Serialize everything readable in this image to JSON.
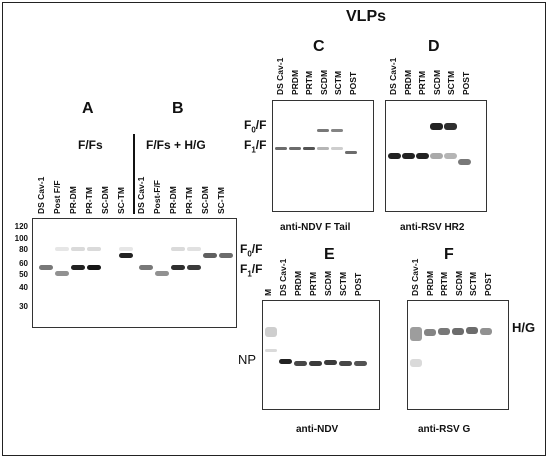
{
  "header": {
    "title": "VLPs"
  },
  "panels": {
    "A": {
      "letter": "A",
      "subtitle": "F/Fs",
      "lanes": [
        "DS Cav-1",
        "Post F/F",
        "PR-DM",
        "PR-TM",
        "SC-DM",
        "SC-TM"
      ]
    },
    "B": {
      "letter": "B",
      "subtitle": "F/Fs + H/G",
      "lanes": [
        "DS Cav-1",
        "Post-F/F",
        "PR-DM",
        "PR-TM",
        "SC-DM",
        "SC-TM"
      ]
    },
    "C": {
      "letter": "C",
      "lanes": [
        "DS Cav-1",
        "PRDM",
        "PRTM",
        "SCDM",
        "SCTM",
        "POST"
      ],
      "caption": "anti-NDV F Tail",
      "labels": [
        "F0/F",
        "F1/F"
      ]
    },
    "D": {
      "letter": "D",
      "lanes": [
        "DS Cav-1",
        "PRDM",
        "PRTM",
        "SCDM",
        "SCTM",
        "POST"
      ],
      "caption": "anti-RSV HR2"
    },
    "E": {
      "letter": "E",
      "lanes": [
        "M",
        "DS Cav-1",
        "PRDM",
        "PRTM",
        "SCDM",
        "SCTM",
        "POST"
      ],
      "caption": "anti-NDV",
      "side_label": "NP"
    },
    "F": {
      "letter": "F",
      "lanes": [
        "DS Cav-1",
        "PRDM",
        "PRTM",
        "SCDM",
        "SCTM",
        "POST"
      ],
      "caption": "anti-RSV G",
      "side_label": "H/G"
    }
  },
  "markers": [
    "120",
    "100",
    "80",
    "60",
    "50",
    "40",
    "30"
  ],
  "ab_labels": {
    "f0": "F0/F",
    "f1": "F1/F"
  }
}
